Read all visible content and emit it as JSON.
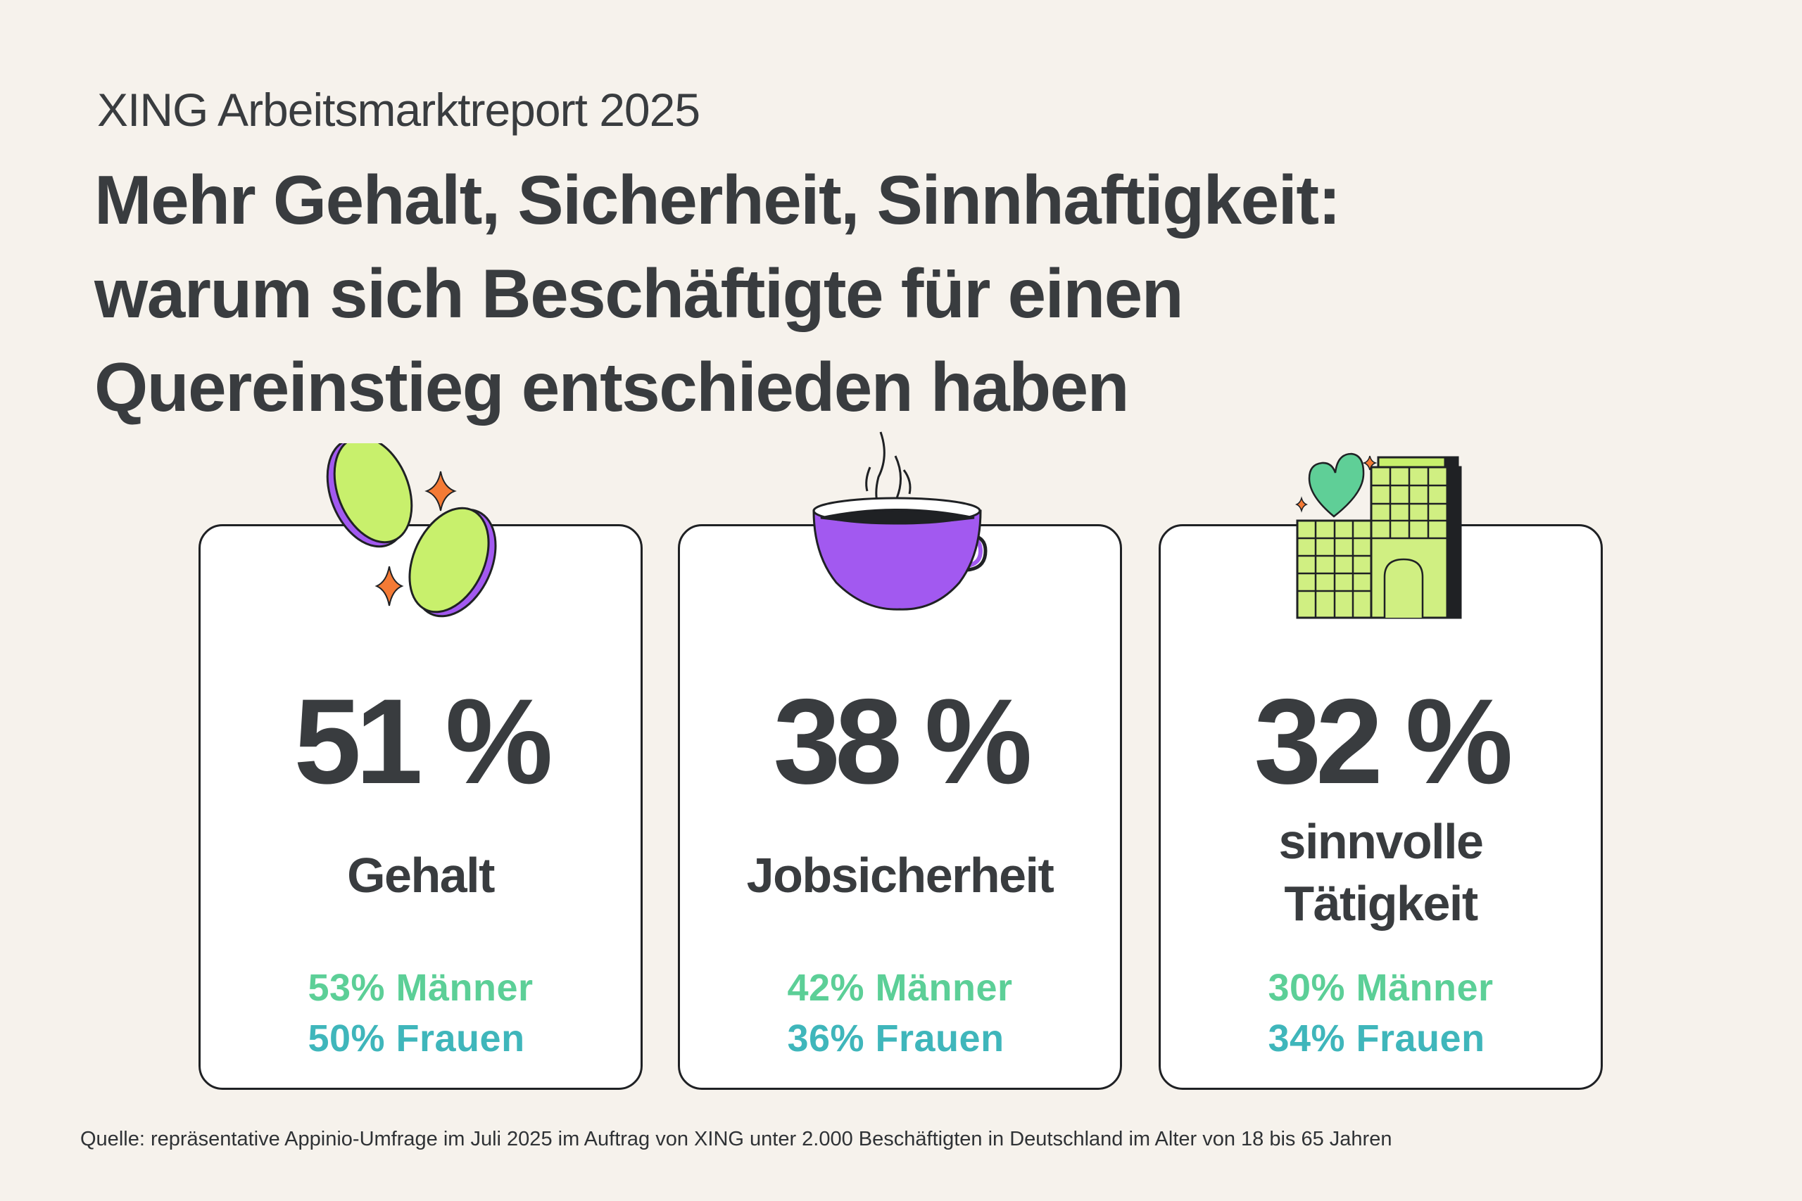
{
  "header": {
    "kicker": "XING Arbeitsmarktreport 2025",
    "headline_lines": [
      "Mehr Gehalt, Sicherheit, Sinnhaftigkeit:",
      "warum sich Beschäftigte für einen",
      "Quereinstieg entschieden haben"
    ]
  },
  "cards": [
    {
      "icon": "coins-icon",
      "percent": "51 %",
      "value": 51,
      "label_lines": [
        "Gehalt"
      ],
      "men": "53% Männer",
      "women": "50% Frauen"
    },
    {
      "icon": "coffee-cup-icon",
      "percent": "38 %",
      "value": 38,
      "label_lines": [
        "Jobsicherheit"
      ],
      "men": "42% Männer",
      "women": "36% Frauen"
    },
    {
      "icon": "building-heart-icon",
      "percent": "32 %",
      "value": 32,
      "label_lines": [
        "sinnvolle",
        "Tätigkeit"
      ],
      "men": "30% Männer",
      "women": "34% Frauen"
    }
  ],
  "footer": {
    "source": "Quelle: repräsentative Appinio-Umfrage im Juli 2025 im Auftrag von XING unter 2.000 Beschäftigten in Deutschland im Alter von 18 bis 65 Jahren"
  },
  "colors": {
    "background": "#f6f2ec",
    "text": "#393c3f",
    "men": "#5ccf97",
    "women": "#3fb6bb",
    "lime": "#c8f06c",
    "purple": "#a259f0",
    "orange": "#f47a35",
    "heart": "#5fcf97"
  }
}
